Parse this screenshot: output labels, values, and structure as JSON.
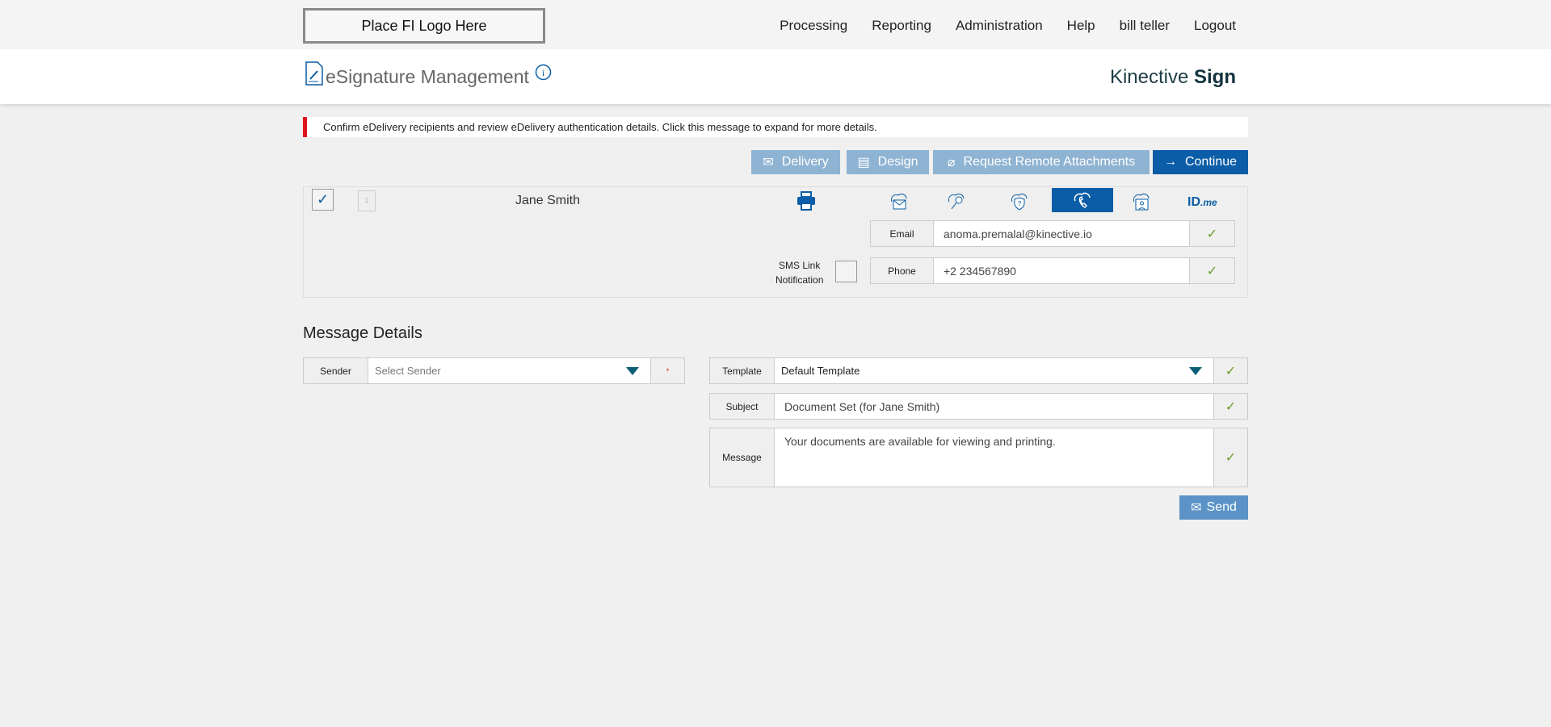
{
  "header": {
    "logo_text": "Place FI Logo Here",
    "nav": [
      "Processing",
      "Reporting",
      "Administration",
      "Help",
      "bill teller",
      "Logout"
    ]
  },
  "titlebar": {
    "title": "eSignature Management",
    "brand_light": "Kinective",
    "brand_bold": "Sign"
  },
  "alert": {
    "text": "Confirm eDelivery recipients and review eDelivery authentication details. Click this message to expand for more details.",
    "color": "#e0141e"
  },
  "toolbar": {
    "delivery": "Delivery",
    "design": "Design",
    "attachments": "Request Remote Attachments",
    "continue": "Continue"
  },
  "recipient": {
    "name": "Jane Smith",
    "doc_number": "1",
    "checked": true,
    "auth_icons": [
      "email-cloud-icon",
      "key-cloud-icon",
      "question-shield-icon",
      "phone-cloud-icon",
      "id-card-cloud-icon",
      "idme-logo"
    ],
    "active_auth": "phone-cloud-icon",
    "idme": {
      "id": "ID",
      "me": ".me"
    },
    "email_label": "Email",
    "email_value": "anoma.premalal@kinective.io",
    "phone_label": "Phone",
    "phone_value": "+2 234567890",
    "sms_label_1": "SMS Link",
    "sms_label_2": "Notification",
    "sms_checked": false
  },
  "message_details": {
    "heading": "Message Details",
    "sender_label": "Sender",
    "sender_placeholder": "Select Sender",
    "required_mark": "*",
    "template_label": "Template",
    "template_value": "Default Template",
    "subject_label": "Subject",
    "subject_value": "Document Set (for Jane Smith)",
    "message_label": "Message",
    "message_value": "Your documents are available for viewing and printing.",
    "send": "Send"
  },
  "colors": {
    "primary": "#0a5da6",
    "button_light": "#8fb3d2",
    "check": "#6a9e2a"
  }
}
